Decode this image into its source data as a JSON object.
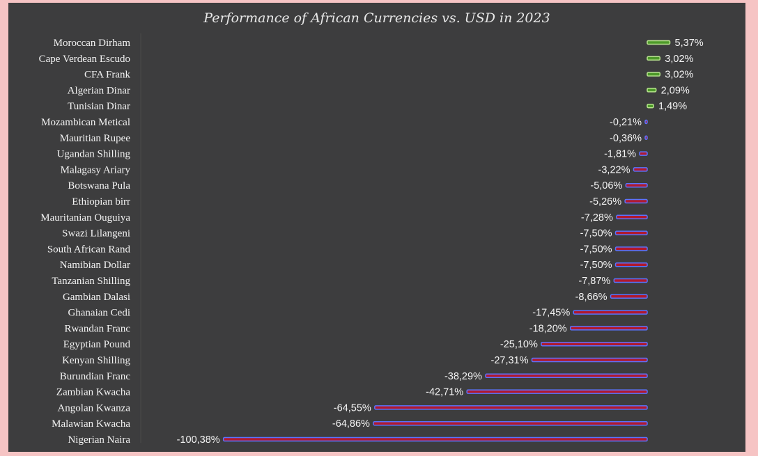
{
  "colors": {
    "background": "#3d3d3e",
    "positive": "#4e9a2a",
    "negative": "#b0192e",
    "negative_outline": "#5a74ff",
    "positive_outline": "#b8e58e",
    "border": "#f6c4c4"
  },
  "chart_data": {
    "type": "bar",
    "orientation": "horizontal",
    "title": "Performance of African Currencies vs. USD in 2023",
    "xlabel": "",
    "ylabel": "",
    "xlim": [
      -100.38,
      5.37
    ],
    "grid": false,
    "legend": "none",
    "categories": [
      "Moroccan Dirham",
      "Cape Verdean Escudo",
      "CFA Frank",
      "Algerian Dinar",
      "Tunisian Dinar",
      "Mozambican Metical",
      "Mauritian Rupee",
      "Ugandan Shilling",
      "Malagasy Ariary",
      "Botswana Pula",
      "Ethiopian birr",
      "Mauritanian Ouguiya",
      "Swazi Lilangeni",
      "South African Rand",
      "Namibian Dollar",
      "Tanzanian Shilling",
      "Gambian Dalasi",
      "Ghanaian Cedi",
      "Rwandan Franc",
      "Egyptian Pound",
      "Kenyan Shilling",
      "Burundian Franc",
      "Zambian Kwacha",
      "Angolan Kwanza",
      "Malawian Kwacha",
      "Nigerian Naira"
    ],
    "values": [
      5.37,
      3.02,
      3.02,
      2.09,
      1.49,
      -0.21,
      -0.36,
      -1.81,
      -3.22,
      -5.06,
      -5.26,
      -7.28,
      -7.5,
      -7.5,
      -7.5,
      -7.87,
      -8.66,
      -17.45,
      -18.2,
      -25.1,
      -27.31,
      -38.29,
      -42.71,
      -64.55,
      -64.86,
      -100.38
    ],
    "labels": [
      "5,37%",
      "3,02%",
      "3,02%",
      "2,09%",
      "1,49%",
      "-0,21%",
      "-0,36%",
      "-1,81%",
      "-3,22%",
      "-5,06%",
      "-5,26%",
      "-7,28%",
      "-7,50%",
      "-7,50%",
      "-7,50%",
      "-7,87%",
      "-8,66%",
      "-17,45%",
      "-18,20%",
      "-25,10%",
      "-27,31%",
      "-38,29%",
      "-42,71%",
      "-64,55%",
      "-64,86%",
      "-100,38%"
    ]
  }
}
